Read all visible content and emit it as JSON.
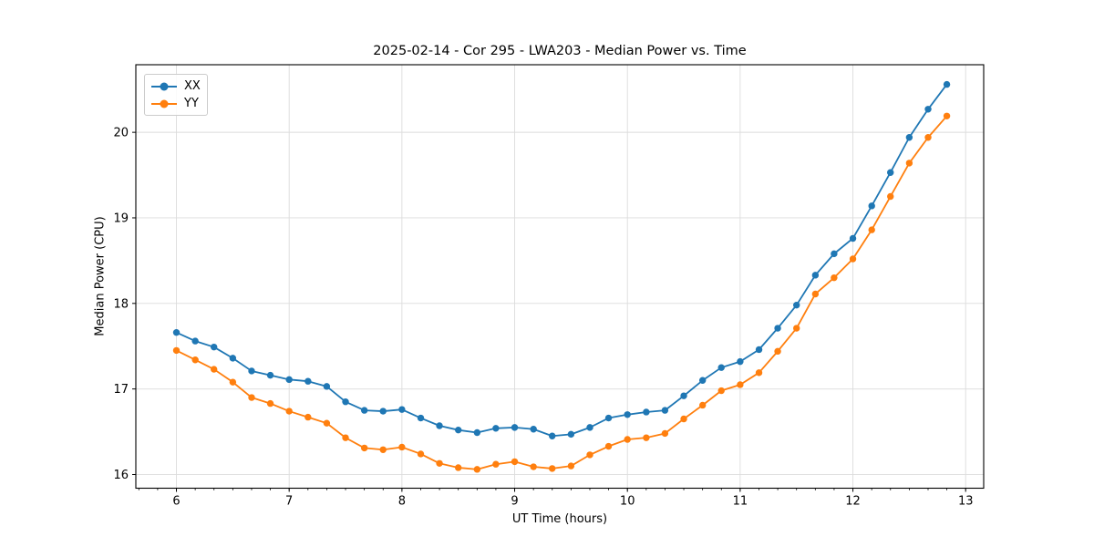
{
  "chart_data": {
    "type": "line",
    "title": "2025-02-14 - Cor 295 - LWA203 - Median Power vs. Time",
    "xlabel": "UT Time (hours)",
    "ylabel": "Median Power (CPU)",
    "x": [
      6,
      6.167,
      6.333,
      6.5,
      6.667,
      6.833,
      7,
      7.167,
      7.333,
      7.5,
      7.667,
      7.833,
      8,
      8.167,
      8.333,
      8.5,
      8.667,
      8.833,
      9,
      9.167,
      9.333,
      9.5,
      9.667,
      9.833,
      10,
      10.167,
      10.333,
      10.5,
      10.667,
      10.833,
      11,
      11.167,
      11.333,
      11.5,
      11.667,
      11.833,
      12,
      12.167,
      12.333,
      12.5,
      12.667,
      12.833
    ],
    "series": [
      {
        "name": "XX",
        "color": "#1f77b4",
        "marker": "circle",
        "values": [
          17.66,
          17.56,
          17.49,
          17.36,
          17.21,
          17.16,
          17.11,
          17.09,
          17.03,
          16.85,
          16.75,
          16.74,
          16.76,
          16.66,
          16.57,
          16.52,
          16.49,
          16.54,
          16.55,
          16.53,
          16.45,
          16.47,
          16.55,
          16.66,
          16.7,
          16.73,
          16.75,
          16.92,
          17.1,
          17.25,
          17.32,
          17.46,
          17.71,
          17.98,
          18.33,
          18.58,
          18.76,
          19.14,
          19.53,
          19.94,
          20.27,
          20.56
        ]
      },
      {
        "name": "YY",
        "color": "#ff7f0e",
        "marker": "circle",
        "values": [
          17.45,
          17.34,
          17.23,
          17.08,
          16.9,
          16.83,
          16.74,
          16.67,
          16.6,
          16.43,
          16.31,
          16.29,
          16.32,
          16.24,
          16.13,
          16.08,
          16.06,
          16.12,
          16.15,
          16.09,
          16.07,
          16.1,
          16.23,
          16.33,
          16.41,
          16.43,
          16.48,
          16.65,
          16.81,
          16.98,
          17.05,
          17.19,
          17.44,
          17.71,
          18.11,
          18.3,
          18.52,
          18.86,
          19.25,
          19.64,
          19.94,
          20.19
        ]
      }
    ],
    "xlim": [
      5.64,
      13.16
    ],
    "ylim": [
      15.84,
      20.79
    ],
    "xticks": [
      6,
      7,
      8,
      9,
      10,
      11,
      12,
      13
    ],
    "yticks": [
      16,
      17,
      18,
      19,
      20
    ],
    "x_minor_step": 0.166667,
    "grid": true,
    "legend": {
      "position": "upper-left",
      "entries": [
        "XX",
        "YY"
      ]
    },
    "colors": {
      "grid": "#dcdcdc",
      "spine": "#000000",
      "tick_text": "#000000",
      "background": "#ffffff"
    }
  }
}
